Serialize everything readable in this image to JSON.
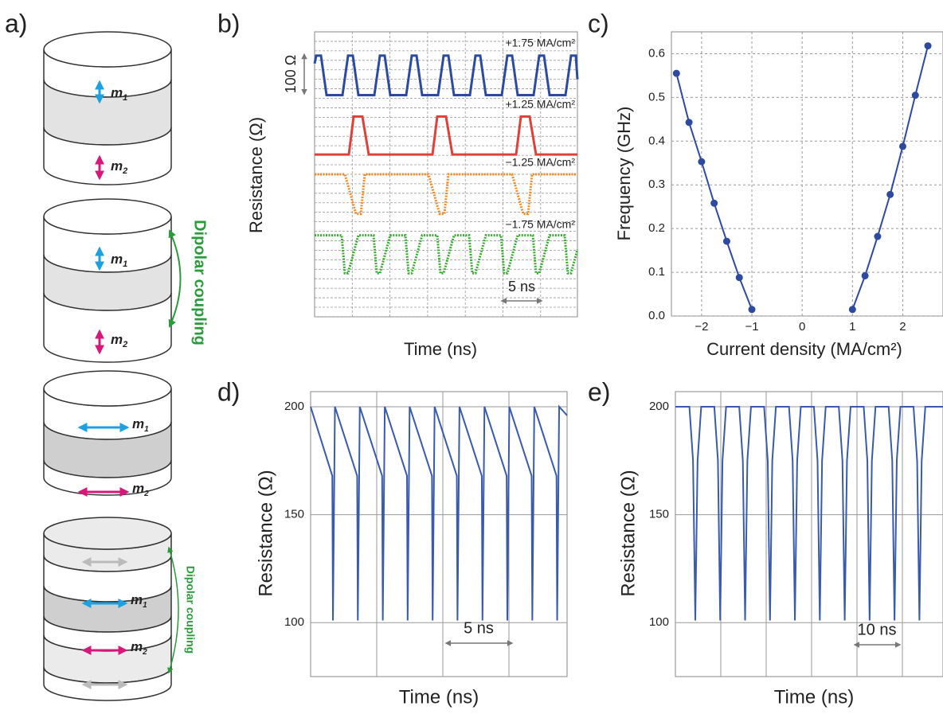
{
  "panel_labels": [
    "a)",
    "b)",
    "c)",
    "d)",
    "e)"
  ],
  "diagram": {
    "moment": "m",
    "subscripts": [
      "1",
      "2"
    ],
    "coupling": "Dipolar coupling"
  },
  "chart_data": [
    {
      "type": "line",
      "x_label": "Time (ns)",
      "y_label": "Resistance (Ω)",
      "xlim": [
        0,
        33
      ],
      "ylim": [
        0,
        720
      ],
      "scale_bars": [
        {
          "label": "100 Ω",
          "value": 100,
          "axis": "y"
        },
        {
          "label": "5 ns",
          "value": 5,
          "axis": "x"
        }
      ],
      "series": [
        {
          "name": "+1.75 MA/cm²",
          "color": "#2b4aa0",
          "line_style": "solid",
          "x": [
            0,
            0.2,
            0.8,
            1.5,
            3.5,
            4.2,
            4.8,
            5.5,
            7.5,
            8.2,
            8.8,
            9.5,
            11.5,
            12.2,
            12.8,
            13.5,
            15.5,
            16.2,
            16.8,
            17.5,
            19.5,
            20.2,
            20.8,
            21.5,
            23.5,
            24.2,
            24.8,
            25.5,
            27.5,
            28.2,
            28.8,
            29.5,
            31.5,
            32.2,
            32.8,
            33
          ],
          "values": [
            640,
            660,
            660,
            560,
            560,
            660,
            660,
            560,
            560,
            660,
            660,
            560,
            560,
            660,
            660,
            560,
            560,
            660,
            660,
            560,
            560,
            660,
            660,
            560,
            560,
            660,
            660,
            560,
            560,
            660,
            660,
            560,
            560,
            660,
            660,
            600
          ]
        },
        {
          "name": "+1.25 MA/cm²",
          "color": "#e0403a",
          "line_style": "solid",
          "x": [
            0,
            4.3,
            4.9,
            6.0,
            6.8,
            14.8,
            15.4,
            16.5,
            17.3,
            25.3,
            25.9,
            27.0,
            27.8,
            33
          ],
          "values": [
            410,
            410,
            506,
            506,
            410,
            410,
            506,
            506,
            410,
            410,
            506,
            506,
            410,
            410
          ]
        },
        {
          "name": "−1.25 MA/cm²",
          "color": "#f08a24",
          "line_style": "dotted",
          "x": [
            0,
            3.8,
            5.2,
            5.8,
            6.3,
            14.3,
            15.7,
            16.3,
            16.8,
            24.8,
            26.2,
            26.8,
            27.3,
            33
          ],
          "values": [
            360,
            360,
            260,
            260,
            360,
            360,
            260,
            260,
            360,
            360,
            260,
            260,
            360,
            360
          ]
        },
        {
          "name": "−1.75 MA/cm²",
          "color": "#3aaa35",
          "line_style": "dotted",
          "x": [
            0,
            3.4,
            3.8,
            4.2,
            5.5,
            7.4,
            7.8,
            8.2,
            9.5,
            11.4,
            11.8,
            12.2,
            13.5,
            15.4,
            15.8,
            16.2,
            17.5,
            19.4,
            19.8,
            20.2,
            21.5,
            23.4,
            23.8,
            24.2,
            25.5,
            27.4,
            27.8,
            28.2,
            29.5,
            31.4,
            31.8,
            32.2,
            33
          ],
          "values": [
            206,
            206,
            110,
            110,
            206,
            206,
            110,
            110,
            206,
            206,
            110,
            110,
            206,
            206,
            110,
            110,
            206,
            206,
            110,
            110,
            206,
            206,
            110,
            110,
            206,
            206,
            110,
            110,
            206,
            206,
            110,
            110,
            170
          ]
        }
      ]
    },
    {
      "type": "line",
      "x_label": "Current density (MA/cm²)",
      "y_label": "Frequency (GHz)",
      "xlim": [
        -2.6,
        2.8
      ],
      "ylim": [
        0,
        0.65
      ],
      "xticks": [
        {
          "value": -2,
          "label": "−2"
        },
        {
          "value": -1,
          "label": "−1"
        },
        0,
        1,
        2
      ],
      "yticks": [
        {
          "value": 0,
          "label": "0.0"
        },
        0.1,
        0.2,
        0.3,
        0.4,
        0.5,
        0.6
      ],
      "grid": "dashed",
      "marker": "circle",
      "series": [
        {
          "color": "#2e4a9e",
          "line_style": "solid",
          "x": [
            -2.5,
            -2.25,
            -2,
            -1.75,
            -1.5,
            -1.25,
            -1
          ],
          "values": [
            0.555,
            0.443,
            0.353,
            0.258,
            0.171,
            0.088,
            0.015
          ]
        },
        {
          "color": "#2e4a9e",
          "line_style": "solid",
          "x": [
            1,
            1.25,
            1.5,
            1.75,
            2,
            2.25,
            2.5
          ],
          "values": [
            0.015,
            0.092,
            0.182,
            0.278,
            0.388,
            0.505,
            0.618
          ]
        }
      ]
    },
    {
      "type": "line",
      "x_label": "Time (ns)",
      "y_label": "Resistance (Ω)",
      "xlim": [
        0,
        19.4
      ],
      "ylim": [
        75,
        207
      ],
      "yticks": [
        100,
        150,
        200
      ],
      "grid": "solid",
      "scale_bars": [
        {
          "label": "5 ns",
          "value": 5,
          "axis": "x"
        }
      ],
      "series": [
        {
          "color": "#3a5bab",
          "line_style": "solid",
          "x": [
            0,
            1.64,
            1.69,
            1.84,
            3.52,
            3.57,
            3.72,
            5.41,
            5.46,
            5.61,
            7.29,
            7.34,
            7.49,
            9.18,
            9.23,
            9.38,
            11.06,
            11.11,
            11.26,
            12.95,
            13.0,
            13.15,
            14.83,
            14.88,
            15.03,
            16.72,
            16.77,
            16.92,
            18.6,
            18.65,
            18.8,
            19.4
          ],
          "values": [
            200,
            168,
            101,
            200,
            168,
            101,
            200,
            168,
            101,
            200,
            168,
            101,
            200,
            168,
            101,
            200,
            168,
            101,
            200,
            168,
            101,
            200,
            168,
            101,
            200,
            168,
            101,
            200,
            168,
            101,
            200,
            196
          ]
        }
      ]
    },
    {
      "type": "line",
      "x_label": "Time (ns)",
      "y_label": "Resistance (Ω)",
      "xlim": [
        0,
        59
      ],
      "ylim": [
        75,
        207
      ],
      "yticks": [
        100,
        150,
        200
      ],
      "grid": "solid",
      "scale_bars": [
        {
          "label": "10 ns",
          "value": 10,
          "axis": "x"
        }
      ],
      "series": [
        {
          "color": "#3a5bab",
          "line_style": "solid",
          "x": [
            0,
            3.09,
            3.89,
            4.39,
            4.89,
            5.69,
            8.58,
            9.38,
            9.88,
            10.38,
            11.18,
            14.07,
            14.87,
            15.37,
            15.87,
            16.67,
            19.56,
            20.36,
            20.86,
            21.36,
            22.16,
            25.05,
            25.85,
            26.35,
            26.85,
            27.65,
            30.54,
            31.34,
            31.84,
            32.34,
            33.14,
            36.03,
            36.83,
            37.33,
            37.83,
            38.63,
            41.52,
            42.32,
            42.82,
            43.32,
            44.12,
            47.01,
            47.81,
            48.31,
            48.81,
            49.61,
            52.5,
            53.3,
            53.8,
            54.3,
            55.1,
            59
          ],
          "values": [
            200,
            200,
            175,
            101,
            175,
            200,
            200,
            175,
            101,
            175,
            200,
            200,
            175,
            101,
            175,
            200,
            200,
            175,
            101,
            175,
            200,
            200,
            175,
            101,
            175,
            200,
            200,
            175,
            101,
            175,
            200,
            200,
            175,
            101,
            175,
            200,
            200,
            175,
            101,
            175,
            200,
            200,
            175,
            101,
            175,
            200,
            200,
            175,
            101,
            175,
            200,
            200
          ]
        }
      ]
    }
  ]
}
